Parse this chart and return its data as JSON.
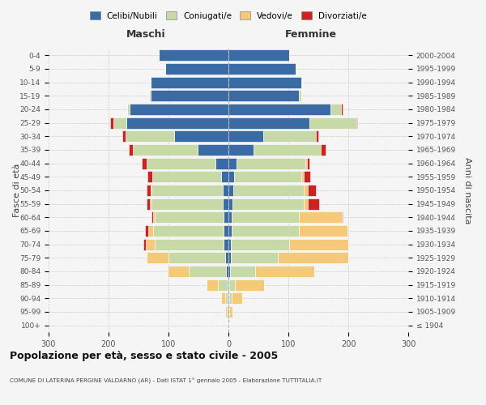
{
  "age_groups": [
    "100+",
    "95-99",
    "90-94",
    "85-89",
    "80-84",
    "75-79",
    "70-74",
    "65-69",
    "60-64",
    "55-59",
    "50-54",
    "45-49",
    "40-44",
    "35-39",
    "30-34",
    "25-29",
    "20-24",
    "15-19",
    "10-14",
    "5-9",
    "0-4"
  ],
  "birth_years": [
    "≤ 1904",
    "1905-1909",
    "1910-1914",
    "1915-1919",
    "1920-1924",
    "1925-1929",
    "1930-1934",
    "1935-1939",
    "1940-1944",
    "1945-1949",
    "1950-1954",
    "1955-1959",
    "1960-1964",
    "1965-1969",
    "1970-1974",
    "1975-1979",
    "1980-1984",
    "1985-1989",
    "1990-1994",
    "1995-1999",
    "2000-2004"
  ],
  "maschi_celibe": [
    0,
    0,
    1,
    2,
    4,
    5,
    8,
    8,
    8,
    9,
    10,
    12,
    22,
    52,
    90,
    170,
    165,
    130,
    130,
    106,
    116
  ],
  "maschi_coniugato": [
    1,
    3,
    5,
    15,
    62,
    95,
    115,
    118,
    115,
    120,
    118,
    115,
    115,
    108,
    82,
    22,
    4,
    2,
    0,
    0,
    0
  ],
  "maschi_vedovo": [
    0,
    2,
    6,
    20,
    36,
    36,
    15,
    8,
    3,
    2,
    2,
    0,
    0,
    0,
    0,
    0,
    0,
    0,
    0,
    0,
    0
  ],
  "maschi_divorziato": [
    0,
    0,
    0,
    0,
    0,
    0,
    4,
    5,
    3,
    5,
    7,
    8,
    8,
    6,
    5,
    5,
    0,
    0,
    0,
    0,
    0
  ],
  "femmine_nubile": [
    0,
    0,
    1,
    1,
    3,
    4,
    4,
    5,
    5,
    7,
    8,
    10,
    14,
    42,
    58,
    135,
    170,
    118,
    122,
    112,
    102
  ],
  "femmine_coniugata": [
    1,
    2,
    4,
    10,
    42,
    78,
    98,
    112,
    112,
    118,
    118,
    112,
    115,
    112,
    88,
    78,
    18,
    3,
    1,
    0,
    0
  ],
  "femmine_vedova": [
    1,
    5,
    18,
    48,
    98,
    118,
    98,
    82,
    72,
    8,
    6,
    4,
    2,
    0,
    0,
    0,
    0,
    0,
    0,
    0,
    0
  ],
  "femmine_divorziata": [
    0,
    0,
    0,
    0,
    0,
    0,
    0,
    0,
    2,
    18,
    14,
    10,
    4,
    8,
    4,
    2,
    2,
    0,
    0,
    0,
    0
  ],
  "colors": {
    "celibe": "#3B6BA5",
    "coniugato": "#C8D9A8",
    "vedovo": "#F5C97A",
    "divorziato": "#CC2222"
  },
  "xlim": 300,
  "title": "Popolazione per età, sesso e stato civile - 2005",
  "subtitle": "COMUNE DI LATERINA PERGINE VALDARNO (AR) - Dati ISTAT 1° gennaio 2005 - Elaborazione TUTTITALIA.IT",
  "ylabel_left": "Fasce di età",
  "ylabel_right": "Anni di nascita",
  "header_left": "Maschi",
  "header_right": "Femmine",
  "legend_labels": [
    "Celibi/Nubili",
    "Coniugati/e",
    "Vedovi/e",
    "Divorziati/e"
  ],
  "background_color": "#f5f5f5"
}
